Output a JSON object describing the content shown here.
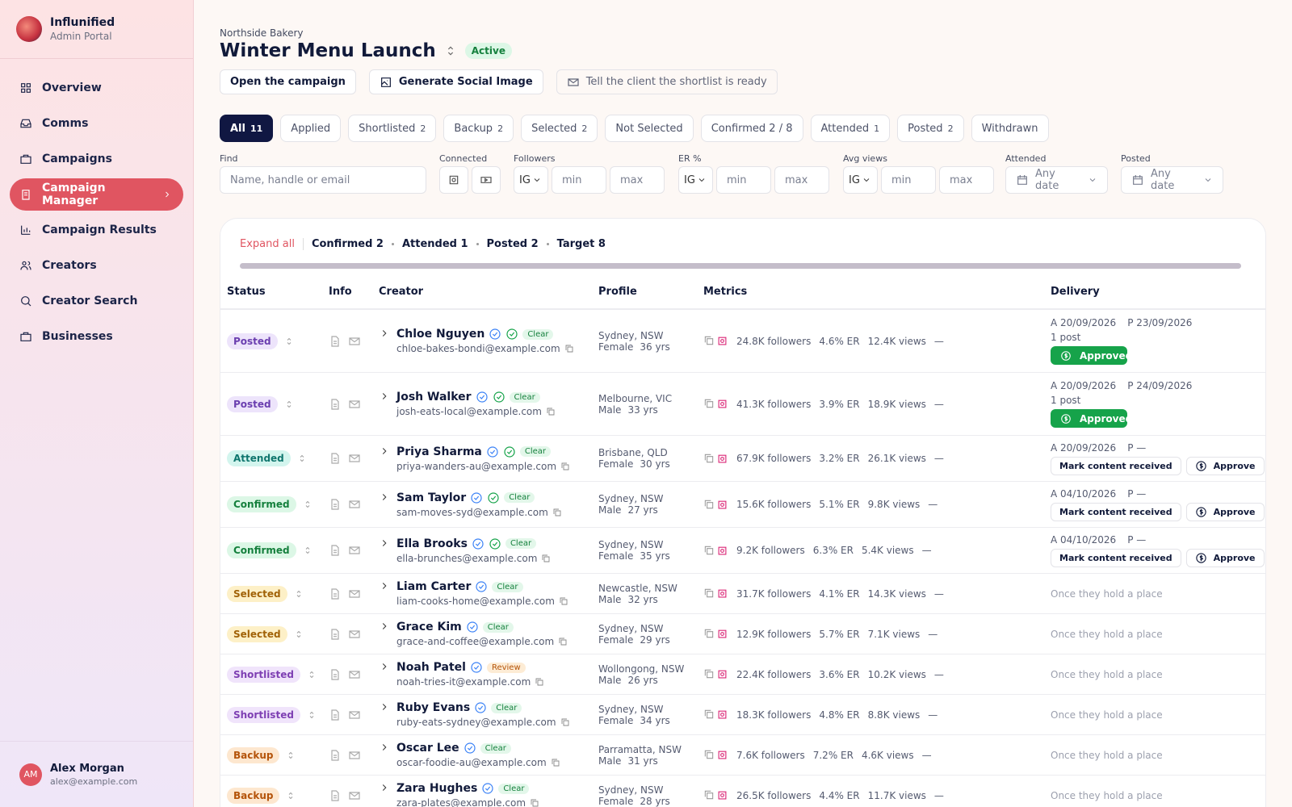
{
  "sidebar": {
    "brand": {
      "name": "Influnified",
      "subtitle": "Admin Portal"
    },
    "nav": [
      "Overview",
      "Comms",
      "Campaigns",
      "Campaign Manager",
      "Campaign Results",
      "Creators",
      "Creator Search",
      "Businesses"
    ],
    "active": 3,
    "user": {
      "initials": "AM",
      "name": "Alex Morgan",
      "email": "alex@example.com"
    }
  },
  "header": {
    "business": "Northside Bakery",
    "title": "Winter Menu Launch",
    "status": "Active",
    "actions": [
      "Open the campaign",
      "Generate Social Image",
      "Tell the client the shortlist is ready"
    ]
  },
  "tabs": [
    {
      "label": "All",
      "count": 11
    },
    {
      "label": "Applied"
    },
    {
      "label": "Shortlisted",
      "count": 2
    },
    {
      "label": "Backup",
      "count": 2
    },
    {
      "label": "Selected",
      "count": 2
    },
    {
      "label": "Not Selected"
    },
    {
      "label": "Confirmed 2 / 8"
    },
    {
      "label": "Attended",
      "count": 1
    },
    {
      "label": "Posted",
      "count": 2
    },
    {
      "label": "Withdrawn"
    }
  ],
  "filters": {
    "find": {
      "label": "Find",
      "placeholder": "Name, handle or email"
    },
    "connected": {
      "label": "Connected"
    },
    "followers": {
      "label": "Followers",
      "platform": "IG",
      "min": "min",
      "max": "max"
    },
    "er": {
      "label": "ER %",
      "platform": "IG",
      "min": "min",
      "max": "max"
    },
    "views": {
      "label": "Avg views",
      "platform": "IG",
      "min": "min",
      "max": "max"
    },
    "attended": {
      "label": "Attended",
      "placeholder": "Any date"
    },
    "posted": {
      "label": "Posted",
      "placeholder": "Any date"
    }
  },
  "summary": {
    "expand": "Expand all",
    "items": [
      "Confirmed 2",
      "Attended 1",
      "Posted 2",
      "Target 8"
    ]
  },
  "table": {
    "columns": [
      "Status",
      "Info",
      "Creator",
      "Profile",
      "Metrics",
      "Delivery"
    ],
    "rows": [
      {
        "status": "Posted",
        "color": "#6b3fb0",
        "bg": "#ede4fb",
        "name": "Chloe Nguyen",
        "checks": 2,
        "badge": "Clear",
        "email": "chloe-bakes-bondi@example.com",
        "location": "Sydney, NSW",
        "gender": "Female",
        "age": "36 yrs",
        "followers": "24.8K followers",
        "er": "4.6% ER",
        "views": "12.4K views",
        "dash": "—",
        "attended": "A 20/09/2026",
        "posted": "P 23/09/2026",
        "posts": "1 post",
        "approved": "Approved"
      },
      {
        "status": "Posted",
        "color": "#6b3fb0",
        "bg": "#ede4fb",
        "name": "Josh Walker",
        "checks": 2,
        "badge": "Clear",
        "email": "josh-eats-local@example.com",
        "location": "Melbourne, VIC",
        "gender": "Male",
        "age": "33 yrs",
        "followers": "41.3K followers",
        "er": "3.9% ER",
        "views": "18.9K views",
        "dash": "—",
        "attended": "A 20/09/2026",
        "posted": "P 24/09/2026",
        "posts": "1 post",
        "approved": "Approved"
      },
      {
        "status": "Attended",
        "color": "#0f766e",
        "bg": "#d3f5ee",
        "name": "Priya Sharma",
        "checks": 2,
        "badge": "Clear",
        "email": "priya-wanders-au@example.com",
        "location": "Brisbane, QLD",
        "gender": "Female",
        "age": "30 yrs",
        "followers": "67.9K followers",
        "er": "3.2% ER",
        "views": "26.1K views",
        "dash": "—",
        "attended": "A 20/09/2026",
        "posted": "P —",
        "actions": [
          "Mark content received",
          "Approve"
        ]
      },
      {
        "status": "Confirmed",
        "color": "#15803d",
        "bg": "#dcf7e6",
        "name": "Sam Taylor",
        "checks": 2,
        "badge": "Clear",
        "email": "sam-moves-syd@example.com",
        "location": "Sydney, NSW",
        "gender": "Male",
        "age": "27 yrs",
        "followers": "15.6K followers",
        "er": "5.1% ER",
        "views": "9.8K views",
        "dash": "—",
        "attended": "A 04/10/2026",
        "posted": "P —",
        "actions": [
          "Mark content received",
          "Approve"
        ]
      },
      {
        "status": "Confirmed",
        "color": "#15803d",
        "bg": "#dcf7e6",
        "name": "Ella Brooks",
        "checks": 2,
        "badge": "Clear",
        "email": "ella-brunches@example.com",
        "location": "Sydney, NSW",
        "gender": "Female",
        "age": "35 yrs",
        "followers": "9.2K followers",
        "er": "6.3% ER",
        "views": "5.4K views",
        "dash": "—",
        "attended": "A 04/10/2026",
        "posted": "P —",
        "actions": [
          "Mark content received",
          "Approve"
        ]
      },
      {
        "status": "Selected",
        "color": "#a16207",
        "bg": "#fdf0c7",
        "name": "Liam Carter",
        "checks": 1,
        "badge": "Clear",
        "email": "liam-cooks-home@example.com",
        "location": "Newcastle, NSW",
        "gender": "Male",
        "age": "32 yrs",
        "followers": "31.7K followers",
        "er": "4.1% ER",
        "views": "14.3K views",
        "dash": "—",
        "note": "Once they hold a place"
      },
      {
        "status": "Selected",
        "color": "#a16207",
        "bg": "#fdf0c7",
        "name": "Grace Kim",
        "checks": 1,
        "badge": "Clear",
        "email": "grace-and-coffee@example.com",
        "location": "Sydney, NSW",
        "gender": "Female",
        "age": "29 yrs",
        "followers": "12.9K followers",
        "er": "5.7% ER",
        "views": "7.1K views",
        "dash": "—",
        "note": "Once they hold a place"
      },
      {
        "status": "Shortlisted",
        "color": "#7e3fb3",
        "bg": "#f0e4fb",
        "name": "Noah Patel",
        "checks": 1,
        "badge": "Review",
        "email": "noah-tries-it@example.com",
        "location": "Wollongong, NSW",
        "gender": "Male",
        "age": "26 yrs",
        "followers": "22.4K followers",
        "er": "3.6% ER",
        "views": "10.2K views",
        "dash": "—",
        "note": "Once they hold a place"
      },
      {
        "status": "Shortlisted",
        "color": "#7e3fb3",
        "bg": "#f0e4fb",
        "name": "Ruby Evans",
        "checks": 1,
        "badge": "Clear",
        "email": "ruby-eats-sydney@example.com",
        "location": "Sydney, NSW",
        "gender": "Female",
        "age": "34 yrs",
        "followers": "18.3K followers",
        "er": "4.8% ER",
        "views": "8.8K views",
        "dash": "—",
        "note": "Once they hold a place"
      },
      {
        "status": "Backup",
        "color": "#b45309",
        "bg": "#fde7cf",
        "name": "Oscar Lee",
        "checks": 1,
        "badge": "Clear",
        "email": "oscar-foodie-au@example.com",
        "location": "Parramatta, NSW",
        "gender": "Male",
        "age": "31 yrs",
        "followers": "7.6K followers",
        "er": "7.2% ER",
        "views": "4.6K views",
        "dash": "—",
        "note": "Once they hold a place"
      },
      {
        "status": "Backup",
        "color": "#b45309",
        "bg": "#fde7cf",
        "name": "Zara Hughes",
        "checks": 1,
        "badge": "Clear",
        "email": "zara-plates@example.com",
        "location": "Sydney, NSW",
        "gender": "Female",
        "age": "28 yrs",
        "followers": "26.5K followers",
        "er": "4.4% ER",
        "views": "11.7K views",
        "dash": "—",
        "note": "Once they hold a place"
      }
    ]
  }
}
